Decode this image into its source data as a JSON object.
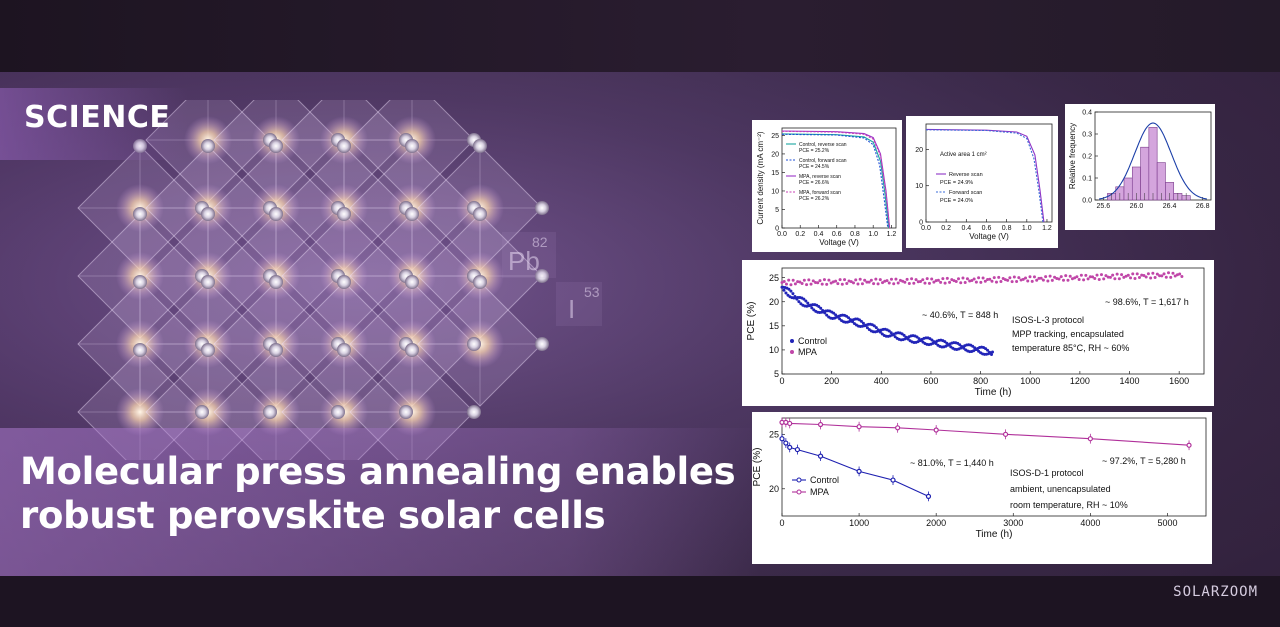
{
  "header": {
    "label": "SCIENCE"
  },
  "headline": {
    "line1": "Molecular press annealing enables",
    "line2": "robust perovskite solar cells"
  },
  "elements": [
    {
      "symbol": "Pb",
      "number": "82"
    },
    {
      "symbol": "I",
      "number": "53"
    }
  ],
  "brand": "SOLARZOOM",
  "colors": {
    "accent": "#a57bd0",
    "control": "#1d1fb0",
    "mpa": "#b0309a"
  },
  "chart_data": [
    {
      "type": "line",
      "xlabel": "Voltage (V)",
      "ylabel": "Current density (mA cm⁻²)",
      "xticks": [
        "0.0",
        "0.2",
        "0.4",
        "0.6",
        "0.8",
        "1.0",
        "1.2"
      ],
      "yticks": [
        "0",
        "5",
        "10",
        "15",
        "20",
        "25"
      ],
      "xlim": [
        0,
        1.25
      ],
      "ylim": [
        0,
        27
      ],
      "series": [
        {
          "name": "Control, reverse scan",
          "values": [
            [
              0,
              25.4
            ],
            [
              0.6,
              25.2
            ],
            [
              0.9,
              24.6
            ],
            [
              1.0,
              23.2
            ],
            [
              1.08,
              18
            ],
            [
              1.13,
              9
            ],
            [
              1.17,
              0
            ]
          ]
        },
        {
          "name": "Control, forward scan",
          "values": [
            [
              0,
              25.3
            ],
            [
              0.6,
              25.1
            ],
            [
              0.9,
              24.3
            ],
            [
              1.0,
              22.5
            ],
            [
              1.07,
              17
            ],
            [
              1.12,
              8
            ],
            [
              1.16,
              0
            ]
          ]
        },
        {
          "name": "MPA, reverse scan",
          "values": [
            [
              0,
              26.2
            ],
            [
              0.6,
              26.0
            ],
            [
              0.9,
              25.5
            ],
            [
              1.0,
              24.4
            ],
            [
              1.08,
              20
            ],
            [
              1.14,
              10
            ],
            [
              1.18,
              0
            ]
          ]
        },
        {
          "name": "MPA, forward scan",
          "values": [
            [
              0,
              26.1
            ],
            [
              0.6,
              25.9
            ],
            [
              0.9,
              25.3
            ],
            [
              1.0,
              24.0
            ],
            [
              1.08,
              19.5
            ],
            [
              1.14,
              9.5
            ],
            [
              1.18,
              0
            ]
          ]
        }
      ],
      "annotations": [
        "PCE = 25.2%",
        "PCE = 24.5%",
        "PCE = 26.6%",
        "PCE = 26.2%"
      ]
    },
    {
      "type": "line",
      "xlabel": "Voltage (V)",
      "ylabel": "",
      "xticks": [
        "0.0",
        "0.2",
        "0.4",
        "0.6",
        "0.8",
        "1.0",
        "1.2"
      ],
      "yticks": [
        "0",
        "10",
        "20"
      ],
      "xlim": [
        0,
        1.25
      ],
      "ylim": [
        0,
        27
      ],
      "title": "Active area 1 cm²",
      "series": [
        {
          "name": "Reverse scan",
          "values": [
            [
              0,
              25.5
            ],
            [
              0.6,
              25.3
            ],
            [
              0.9,
              24.8
            ],
            [
              1.0,
              23.6
            ],
            [
              1.08,
              18.5
            ],
            [
              1.13,
              9
            ],
            [
              1.17,
              0
            ]
          ]
        },
        {
          "name": "Forward scan",
          "values": [
            [
              0,
              25.4
            ],
            [
              0.6,
              25.2
            ],
            [
              0.9,
              24.5
            ],
            [
              1.0,
              23.0
            ],
            [
              1.07,
              17.5
            ],
            [
              1.12,
              8.5
            ],
            [
              1.16,
              0
            ]
          ]
        }
      ],
      "annotations": [
        "PCE = 24.9%",
        "PCE = 24.0%"
      ]
    },
    {
      "type": "bar",
      "xlabel": "",
      "ylabel": "Relative frequency",
      "xticks": [
        "25.6",
        "26.0",
        "26.4",
        "26.8"
      ],
      "yticks": [
        "0.0",
        "0.1",
        "0.2",
        "0.3",
        "0.4"
      ],
      "xlim": [
        25.5,
        26.9
      ],
      "ylim": [
        0,
        0.4
      ],
      "bin_width": 0.1,
      "categories": [
        25.7,
        25.8,
        25.9,
        26.0,
        26.1,
        26.2,
        26.3,
        26.4,
        26.5,
        26.6
      ],
      "values": [
        0.03,
        0.06,
        0.1,
        0.15,
        0.24,
        0.33,
        0.17,
        0.08,
        0.03,
        0.02
      ]
    },
    {
      "type": "scatter",
      "xlabel": "Time (h)",
      "ylabel": "PCE (%)",
      "xticks": [
        "0",
        "200",
        "400",
        "600",
        "800",
        "1000",
        "1200",
        "1400",
        "1600"
      ],
      "yticks": [
        "5",
        "10",
        "15",
        "20",
        "25"
      ],
      "xlim": [
        0,
        1700
      ],
      "ylim": [
        5,
        27
      ],
      "series": [
        {
          "name": "Control",
          "values": [
            [
              0,
              23.0
            ],
            [
              50,
              21.0
            ],
            [
              100,
              19.5
            ],
            [
              200,
              17.2
            ],
            [
              300,
              15.8
            ],
            [
              400,
              13.8
            ],
            [
              500,
              12.5
            ],
            [
              600,
              11.7
            ],
            [
              700,
              10.8
            ],
            [
              800,
              10.0
            ],
            [
              848,
              9.2
            ]
          ]
        },
        {
          "name": "MPA",
          "values": [
            [
              0,
              24.0
            ],
            [
              200,
              24.1
            ],
            [
              400,
              24.2
            ],
            [
              600,
              24.3
            ],
            [
              800,
              24.5
            ],
            [
              1000,
              24.7
            ],
            [
              1200,
              25.0
            ],
            [
              1400,
              25.3
            ],
            [
              1617,
              25.6
            ]
          ]
        }
      ],
      "annotations": [
        "~ 98.6%, T = 1,617 h",
        "~ 40.6%, T = 848 h",
        "ISOS-L-3 protocol",
        "MPP tracking, encapsulated",
        "temperature 85°C, RH ~ 60%"
      ]
    },
    {
      "type": "line",
      "xlabel": "Time (h)",
      "ylabel": "PCE (%)",
      "xticks": [
        "0",
        "1000",
        "2000",
        "3000",
        "4000",
        "5000"
      ],
      "yticks": [
        "20",
        "25"
      ],
      "xlim": [
        0,
        5500
      ],
      "ylim": [
        17.5,
        26.5
      ],
      "series": [
        {
          "name": "Control",
          "values": [
            [
              0,
              24.6
            ],
            [
              50,
              24.2
            ],
            [
              100,
              23.8
            ],
            [
              200,
              23.6
            ],
            [
              500,
              23.0
            ],
            [
              1000,
              21.6
            ],
            [
              1440,
              20.8
            ],
            [
              1900,
              19.3
            ]
          ]
        },
        {
          "name": "MPA",
          "values": [
            [
              0,
              26.1
            ],
            [
              50,
              26.1
            ],
            [
              100,
              26.0
            ],
            [
              500,
              25.9
            ],
            [
              1000,
              25.7
            ],
            [
              1500,
              25.6
            ],
            [
              2000,
              25.4
            ],
            [
              2900,
              25.0
            ],
            [
              4000,
              24.6
            ],
            [
              5280,
              24.0
            ]
          ]
        }
      ],
      "annotations": [
        "~ 81.0%, T = 1,440 h",
        "~ 97.2%, T = 5,280 h",
        "ISOS-D-1 protocol",
        "ambient, unencapsulated",
        "room temperature, RH ~ 10%"
      ]
    }
  ]
}
